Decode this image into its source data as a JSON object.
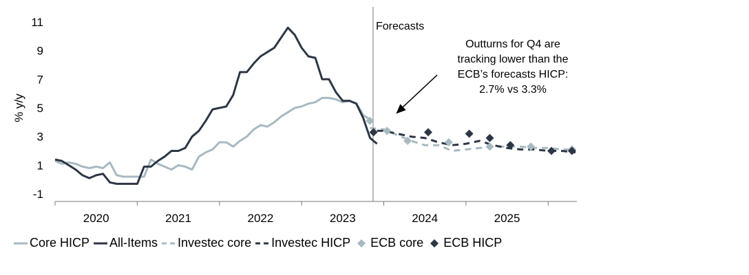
{
  "chart_data": {
    "type": "line",
    "ylabel": "% y/y",
    "ylim": [
      -2,
      12
    ],
    "yticks": [
      -1,
      1,
      3,
      5,
      7,
      9,
      11
    ],
    "xlim": [
      2019.5,
      2025.85
    ],
    "year_ticks": [
      2019.5,
      2020.5,
      2021.5,
      2022.5,
      2023.5,
      2024.5,
      2025.5
    ],
    "year_labels": [
      {
        "label": "2020",
        "x": 2020
      },
      {
        "label": "2021",
        "x": 2021
      },
      {
        "label": "2022",
        "x": 2022
      },
      {
        "label": "2023",
        "x": 2023
      },
      {
        "label": "2024",
        "x": 2024
      },
      {
        "label": "2025",
        "x": 2025
      }
    ],
    "forecast_start": 2023.37,
    "forecast_label": "Forecasts",
    "annotation": {
      "lines": [
        "Outturns for Q4 are",
        "tracking lower than the",
        "ECB’s forecasts HICP:",
        "2.7% vs 3.3%"
      ],
      "arrow_from": {
        "x": 2024.15,
        "y": 7.3
      },
      "arrow_to": {
        "x": 2023.65,
        "y": 4.6
      }
    },
    "colors": {
      "core": "#a7b9c1",
      "all_items": "#2d3645",
      "ecb_core": "#a7b9c1",
      "ecb_hicp": "#2d3645",
      "forecast_line": "#777777",
      "axis": "#777777"
    },
    "series": [
      {
        "name": "Core HICP",
        "style": "solid",
        "color": "#a7b9c1",
        "x": [
          2019.5,
          2019.583,
          2019.667,
          2019.75,
          2019.833,
          2019.917,
          2020.0,
          2020.083,
          2020.167,
          2020.25,
          2020.333,
          2020.417,
          2020.5,
          2020.583,
          2020.667,
          2020.75,
          2020.833,
          2020.917,
          2021.0,
          2021.083,
          2021.167,
          2021.25,
          2021.333,
          2021.417,
          2021.5,
          2021.583,
          2021.667,
          2021.75,
          2021.833,
          2021.917,
          2022.0,
          2022.083,
          2022.167,
          2022.25,
          2022.333,
          2022.417,
          2022.5,
          2022.583,
          2022.667,
          2022.75,
          2022.833,
          2022.917,
          2023.0,
          2023.083,
          2023.167,
          2023.25,
          2023.333
        ],
        "values": [
          1.3,
          1.1,
          1.2,
          1.1,
          0.9,
          0.8,
          0.9,
          0.8,
          1.2,
          0.3,
          0.2,
          0.2,
          0.2,
          0.2,
          1.4,
          1.1,
          0.9,
          0.7,
          1.0,
          0.9,
          0.7,
          1.6,
          1.9,
          2.1,
          2.6,
          2.6,
          2.3,
          2.7,
          3.0,
          3.5,
          3.8,
          3.7,
          4.0,
          4.4,
          4.7,
          5.0,
          5.1,
          5.3,
          5.4,
          5.7,
          5.7,
          5.6,
          5.4,
          5.5,
          5.3,
          4.5,
          4.2
        ]
      },
      {
        "name": "All-Items",
        "style": "solid",
        "color": "#2d3645",
        "x": [
          2019.5,
          2019.583,
          2019.667,
          2019.75,
          2019.833,
          2019.917,
          2020.0,
          2020.083,
          2020.167,
          2020.25,
          2020.333,
          2020.417,
          2020.5,
          2020.583,
          2020.667,
          2020.75,
          2020.833,
          2020.917,
          2021.0,
          2021.083,
          2021.167,
          2021.25,
          2021.333,
          2021.417,
          2021.5,
          2021.583,
          2021.667,
          2021.75,
          2021.833,
          2021.917,
          2022.0,
          2022.083,
          2022.167,
          2022.25,
          2022.333,
          2022.417,
          2022.5,
          2022.583,
          2022.667,
          2022.75,
          2022.833,
          2022.917,
          2023.0,
          2023.083,
          2023.167,
          2023.25,
          2023.333,
          2023.417
        ],
        "values": [
          1.4,
          1.3,
          1.0,
          0.7,
          0.3,
          0.1,
          0.3,
          0.4,
          -0.2,
          -0.3,
          -0.3,
          -0.3,
          -0.3,
          0.9,
          0.9,
          1.3,
          1.6,
          2.0,
          2.0,
          2.2,
          3.0,
          3.4,
          4.1,
          4.9,
          5.0,
          5.1,
          5.9,
          7.5,
          7.5,
          8.1,
          8.6,
          8.9,
          9.2,
          9.9,
          10.6,
          10.1,
          9.2,
          8.6,
          8.5,
          7.0,
          7.0,
          6.1,
          5.5,
          5.5,
          5.3,
          4.3,
          2.9,
          2.5
        ]
      },
      {
        "name": "Investec core",
        "style": "dashed",
        "color": "#a7b9c1",
        "x": [
          2023.333,
          2023.5,
          2023.667,
          2023.833,
          2024.0,
          2024.167,
          2024.333,
          2024.5,
          2024.667,
          2024.833,
          2025.0,
          2025.167,
          2025.333,
          2025.5,
          2025.667,
          2025.833
        ],
        "values": [
          3.6,
          3.5,
          3.1,
          2.7,
          2.4,
          2.4,
          2.0,
          2.1,
          2.2,
          2.3,
          2.3,
          2.3,
          2.2,
          2.2,
          2.1,
          2.1
        ]
      },
      {
        "name": "Investec HICP",
        "style": "dashed",
        "color": "#2d3645",
        "x": [
          2023.417,
          2023.5,
          2023.667,
          2023.833,
          2024.0,
          2024.167,
          2024.333,
          2024.5,
          2024.667,
          2024.833,
          2025.0,
          2025.167,
          2025.333,
          2025.5,
          2025.667,
          2025.833
        ],
        "values": [
          3.4,
          3.4,
          3.2,
          3.0,
          2.9,
          2.6,
          2.4,
          2.5,
          2.7,
          2.4,
          2.2,
          2.1,
          2.1,
          2.0,
          2.0,
          1.9
        ]
      },
      {
        "name": "ECB core",
        "style": "marker-diamond",
        "color": "#a7b9c1",
        "x": [
          2023.33,
          2023.54,
          2023.79,
          2024.29,
          2024.79,
          2025.29,
          2025.79
        ],
        "values": [
          4.1,
          3.4,
          2.7,
          2.6,
          2.3,
          2.3,
          2.1
        ]
      },
      {
        "name": "ECB HICP",
        "style": "marker-diamond",
        "color": "#2d3645",
        "x": [
          2023.375,
          2024.04,
          2024.54,
          2024.79,
          2025.04,
          2025.54,
          2025.79
        ],
        "values": [
          3.3,
          3.3,
          3.2,
          2.9,
          2.4,
          2.0,
          2.0
        ]
      }
    ]
  },
  "legend": [
    {
      "label": "Core HICP",
      "key": "solid-light"
    },
    {
      "label": "All-Items",
      "key": "solid-dark"
    },
    {
      "label": "Investec core",
      "key": "dashed-light"
    },
    {
      "label": "Investec HICP",
      "key": "dashed-dark"
    },
    {
      "label": "ECB core",
      "key": "diamond-light"
    },
    {
      "label": "ECB HICP",
      "key": "diamond-dark"
    }
  ]
}
